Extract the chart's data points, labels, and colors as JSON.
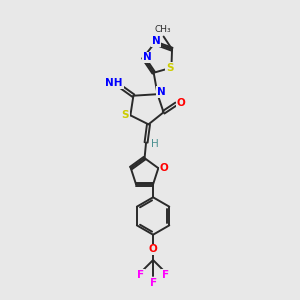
{
  "background_color": "#e8e8e8",
  "bond_color": "#2a2a2a",
  "atom_colors": {
    "N": "#0000ff",
    "S": "#cccc00",
    "O": "#ff0000",
    "F": "#ff00ff",
    "C": "#2a2a2a",
    "H": "#4a9090"
  },
  "figsize": [
    3.0,
    3.0
  ],
  "dpi": 100,
  "lw": 1.4,
  "fs": 7.5
}
